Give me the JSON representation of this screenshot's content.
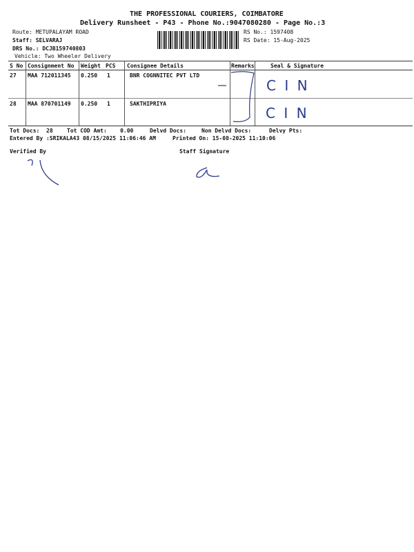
{
  "header": {
    "company": "THE PROFESSIONAL COURIERS, COIMBATORE",
    "subtitle": "Delivery Runsheet - P43 - Phone No.:9047080280 - Page No.:3",
    "route": "Route: METUPALAYAM ROAD",
    "staff": "Staff: SELVARAJ",
    "drs_no": "DRS No.: DCJB159740803",
    "vehicle": "Vehicle: Two Wheeler Delivery",
    "rs_no": "RS No.: 1597408",
    "rs_date": "RS Date: 15-Aug-2025"
  },
  "table": {
    "columns": [
      "S No",
      "Consignment No",
      "Weight",
      "PCS",
      "Consignee Details",
      "Remarks",
      "Seal & Signature"
    ],
    "rows": [
      {
        "sno": "27",
        "consignment": "MAA 712011345",
        "weight": "0.250",
        "pcs": "1",
        "consignee": "BNR COGNNITEC PVT LTD",
        "signature": "C I N"
      },
      {
        "sno": "28",
        "consignment": "MAA 870701149",
        "weight": "0.250",
        "pcs": "1",
        "consignee": "SAKTHIPRIYA",
        "signature": "C I N"
      }
    ]
  },
  "footer": {
    "tot_docs_label": "Tot Docs:",
    "tot_docs": "28",
    "tot_cod_label": "Tot COD Amt:",
    "tot_cod": "0.00",
    "delvd_docs": "Delvd Docs:",
    "non_delvd_docs": "Non Delvd Docs:",
    "delvy_pts": "Delvy Pts:",
    "entered_by": "Entered By :SRIKALA43 08/15/2025 11:06:46 AM",
    "printed_on": "Printed On: 15-08-2025 11:10:06",
    "verified_by": "Verified By",
    "staff_signature": "Staff Signature"
  },
  "colors": {
    "ink": "#111111",
    "pen": "#2a3a8a"
  }
}
